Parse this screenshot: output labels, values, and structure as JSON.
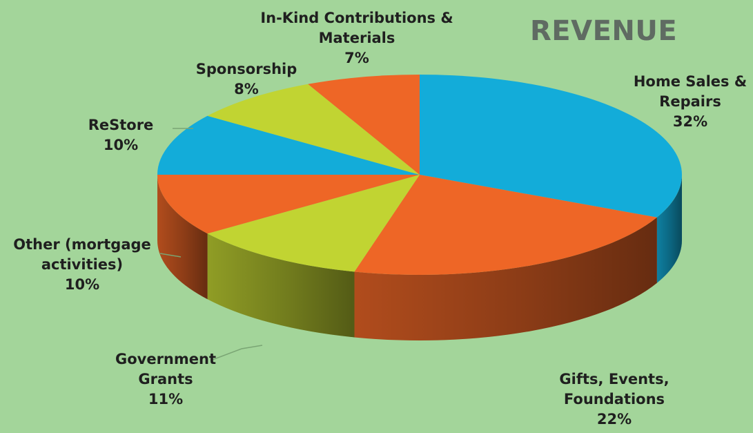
{
  "chart_data": {
    "type": "pie",
    "title": "REVENUE",
    "slices": [
      {
        "label_lines": [
          "Home Sales &",
          "Repairs"
        ],
        "value": 32,
        "value_label": "32%",
        "color": "#13acd9"
      },
      {
        "label_lines": [
          "Gifts, Events,",
          "Foundations"
        ],
        "value": 22,
        "value_label": "22%",
        "color": "#ee6626"
      },
      {
        "label_lines": [
          "Government",
          "Grants"
        ],
        "value": 11,
        "value_label": "11%",
        "color": "#c1d432"
      },
      {
        "label_lines": [
          "Other (mortgage",
          "activities)"
        ],
        "value": 10,
        "value_label": "10%",
        "color": "#ee6626"
      },
      {
        "label_lines": [
          "ReStore"
        ],
        "value": 10,
        "value_label": "10%",
        "color": "#13acd9"
      },
      {
        "label_lines": [
          "Sponsorship"
        ],
        "value": 8,
        "value_label": "8%",
        "color": "#c1d432"
      },
      {
        "label_lines": [
          "In-Kind Contributions &",
          "Materials"
        ],
        "value": 7,
        "value_label": "7%",
        "color": "#ee6626"
      }
    ],
    "style": "3d-pie"
  },
  "colors": {
    "background": "#a3d59a",
    "title": "#5f6b62",
    "label_text": "#1f1f1f"
  }
}
